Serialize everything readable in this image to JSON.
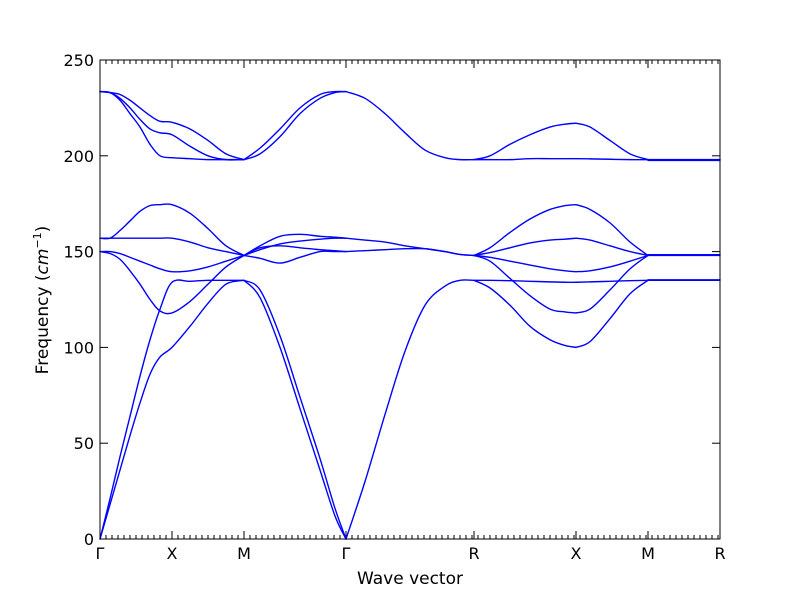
{
  "chart_data": {
    "type": "line",
    "title": "",
    "xlabel": "Wave vector",
    "ylabel_text": "Frequency (",
    "ylabel_math": "cm",
    "ylabel_sup": "−1",
    "ylabel_close": ")",
    "ylim": [
      0,
      250
    ],
    "xlim": [
      0,
      620
    ],
    "yticks": [
      0,
      50,
      100,
      150,
      200,
      250
    ],
    "xticks": [
      {
        "x": 0,
        "label": "Γ"
      },
      {
        "x": 72,
        "label": "X"
      },
      {
        "x": 144,
        "label": "M"
      },
      {
        "x": 246,
        "label": "Γ"
      },
      {
        "x": 374,
        "label": "R"
      },
      {
        "x": 476,
        "label": "X"
      },
      {
        "x": 548,
        "label": "M"
      },
      {
        "x": 620,
        "label": "R"
      }
    ],
    "minor_tick_step": 6,
    "line_color": "#0000ff",
    "series": [
      {
        "x": [
          0,
          10,
          20,
          30,
          40,
          50,
          60,
          72,
          90,
          108,
          126,
          144
        ],
        "values": [
          0,
          18,
          36,
          54,
          71,
          86,
          95,
          100,
          111,
          123,
          133,
          135
        ]
      },
      {
        "x": [
          0,
          10,
          20,
          30,
          40,
          50,
          60,
          72,
          90,
          108,
          126,
          144
        ],
        "values": [
          0,
          21,
          43,
          64,
          85,
          104,
          120,
          134,
          134.5,
          135,
          135,
          135
        ]
      },
      {
        "x": [
          0,
          10,
          20,
          30,
          40,
          50,
          60,
          72,
          90,
          108,
          126,
          144
        ],
        "values": [
          150,
          149,
          146,
          140,
          133,
          125,
          119,
          118,
          124,
          133,
          142,
          148
        ]
      },
      {
        "x": [
          0,
          10,
          20,
          30,
          40,
          50,
          60,
          72,
          90,
          108,
          126,
          144
        ],
        "values": [
          150,
          150,
          149,
          147,
          145,
          143,
          141,
          139.5,
          140,
          142,
          145,
          148
        ]
      },
      {
        "x": [
          0,
          10,
          20,
          30,
          40,
          50,
          60,
          72,
          90,
          108,
          126,
          144
        ],
        "values": [
          157,
          157,
          157,
          157,
          157,
          157,
          157,
          157,
          155,
          152,
          150,
          148
        ]
      },
      {
        "x": [
          0,
          10,
          20,
          30,
          40,
          50,
          60,
          72,
          90,
          108,
          126,
          144
        ],
        "values": [
          157,
          157,
          161,
          166,
          171,
          174,
          174.5,
          174.5,
          170,
          162,
          153,
          148
        ]
      },
      {
        "x": [
          0,
          10,
          20,
          30,
          40,
          50,
          60,
          72,
          90,
          108,
          126,
          144
        ],
        "values": [
          233.5,
          233,
          230,
          225,
          219,
          214,
          212,
          211,
          205,
          200,
          198,
          198
        ]
      },
      {
        "x": [
          0,
          10,
          20,
          30,
          40,
          50,
          60,
          72,
          90,
          108,
          126,
          144
        ],
        "values": [
          233.5,
          233,
          229,
          222,
          215,
          206,
          200,
          199,
          198.5,
          198,
          198,
          198
        ]
      },
      {
        "x": [
          0,
          10,
          20,
          30,
          40,
          50,
          60,
          72,
          90,
          108,
          126,
          144
        ],
        "values": [
          233.5,
          233,
          232,
          229,
          225,
          221,
          218,
          217.5,
          214,
          208,
          201,
          198
        ]
      },
      {
        "x": [
          144,
          160,
          180,
          200,
          220,
          235,
          246
        ],
        "values": [
          135,
          126,
          100,
          68,
          36,
          12,
          0
        ]
      },
      {
        "x": [
          144,
          160,
          180,
          200,
          220,
          235,
          246
        ],
        "values": [
          135,
          130,
          106,
          74,
          42,
          16,
          0
        ]
      },
      {
        "x": [
          144,
          160,
          180,
          200,
          220,
          235,
          246
        ],
        "values": [
          148,
          146.5,
          144,
          147,
          150,
          150,
          150
        ]
      },
      {
        "x": [
          144,
          160,
          180,
          200,
          220,
          235,
          246
        ],
        "values": [
          148,
          152,
          153,
          152,
          151,
          150.5,
          150
        ]
      },
      {
        "x": [
          144,
          160,
          180,
          200,
          220,
          235,
          246
        ],
        "values": [
          148,
          151,
          154,
          155.5,
          156.5,
          157,
          157
        ]
      },
      {
        "x": [
          144,
          160,
          180,
          200,
          220,
          235,
          246
        ],
        "values": [
          148,
          153,
          158,
          159,
          158,
          157.5,
          157
        ]
      },
      {
        "x": [
          144,
          160,
          180,
          200,
          220,
          235,
          246
        ],
        "values": [
          198,
          204,
          214,
          225,
          232,
          233.5,
          233.5
        ]
      },
      {
        "x": [
          144,
          160,
          180,
          200,
          220,
          235,
          246
        ],
        "values": [
          198,
          201,
          210,
          222,
          230,
          233,
          233.5
        ]
      },
      {
        "x": [
          246,
          265,
          285,
          305,
          325,
          345,
          360,
          374
        ],
        "values": [
          0,
          30,
          65,
          98,
          122,
          132,
          135,
          135
        ]
      },
      {
        "x": [
          246,
          265,
          285,
          305,
          325,
          345,
          360,
          374
        ],
        "values": [
          150,
          150.5,
          151,
          151.5,
          151.5,
          150,
          148.5,
          148
        ]
      },
      {
        "x": [
          246,
          265,
          285,
          305,
          325,
          345,
          360,
          374
        ],
        "values": [
          157,
          156,
          155,
          153,
          151.5,
          150,
          148.5,
          148
        ]
      },
      {
        "x": [
          246,
          265,
          285,
          305,
          325,
          345,
          360,
          374
        ],
        "values": [
          233.5,
          230,
          222,
          212,
          203,
          199,
          198,
          198
        ]
      },
      {
        "x": [
          374,
          390,
          410,
          430,
          450,
          465,
          476
        ],
        "values": [
          135,
          131,
          122,
          111,
          104,
          101,
          100
        ]
      },
      {
        "x": [
          374,
          390,
          410,
          430,
          450,
          465,
          476
        ],
        "values": [
          135,
          135,
          134.8,
          134.5,
          134.2,
          134,
          134
        ]
      },
      {
        "x": [
          374,
          390,
          410,
          430,
          450,
          465,
          476
        ],
        "values": [
          148,
          145,
          136,
          127,
          120,
          118.5,
          118
        ]
      },
      {
        "x": [
          374,
          390,
          410,
          430,
          450,
          465,
          476
        ],
        "values": [
          148,
          147,
          145,
          143,
          141,
          140,
          139.5
        ]
      },
      {
        "x": [
          374,
          390,
          410,
          430,
          450,
          465,
          476
        ],
        "values": [
          148,
          149.5,
          152,
          154.5,
          156,
          156.5,
          157
        ]
      },
      {
        "x": [
          374,
          390,
          410,
          430,
          450,
          465,
          476
        ],
        "values": [
          148,
          152,
          160,
          167,
          172,
          174,
          174.5
        ]
      },
      {
        "x": [
          374,
          390,
          410,
          430,
          450,
          465,
          476
        ],
        "values": [
          198,
          198,
          198,
          198.5,
          198.5,
          198.5,
          198.5
        ]
      },
      {
        "x": [
          374,
          390,
          410,
          430,
          450,
          465,
          476
        ],
        "values": [
          198,
          200,
          206,
          211,
          215,
          216.5,
          217
        ]
      },
      {
        "x": [
          476,
          490,
          510,
          530,
          548
        ],
        "values": [
          100,
          103,
          115,
          128,
          135
        ]
      },
      {
        "x": [
          476,
          490,
          510,
          530,
          548
        ],
        "values": [
          134,
          134.2,
          134.5,
          134.8,
          135
        ]
      },
      {
        "x": [
          476,
          490,
          510,
          530,
          548
        ],
        "values": [
          118,
          120,
          130,
          141,
          148
        ]
      },
      {
        "x": [
          476,
          490,
          510,
          530,
          548
        ],
        "values": [
          139.5,
          140,
          142,
          145,
          148
        ]
      },
      {
        "x": [
          476,
          490,
          510,
          530,
          548
        ],
        "values": [
          157,
          156,
          153,
          150,
          148
        ]
      },
      {
        "x": [
          476,
          490,
          510,
          530,
          548
        ],
        "values": [
          174.5,
          172,
          165,
          155,
          148
        ]
      },
      {
        "x": [
          476,
          490,
          510,
          530,
          548
        ],
        "values": [
          198.5,
          198.4,
          198.2,
          198,
          198
        ]
      },
      {
        "x": [
          476,
          490,
          510,
          530,
          548
        ],
        "values": [
          217,
          215,
          208,
          201,
          198
        ]
      },
      {
        "x": [
          548,
          620
        ],
        "values": [
          135,
          135
        ]
      },
      {
        "x": [
          548,
          620
        ],
        "values": [
          135.3,
          135.3
        ]
      },
      {
        "x": [
          548,
          620
        ],
        "values": [
          148,
          148
        ]
      },
      {
        "x": [
          548,
          620
        ],
        "values": [
          148.4,
          148.4
        ]
      },
      {
        "x": [
          548,
          620
        ],
        "values": [
          198,
          198
        ]
      },
      {
        "x": [
          548,
          620
        ],
        "values": [
          197.6,
          197.6
        ]
      }
    ]
  }
}
